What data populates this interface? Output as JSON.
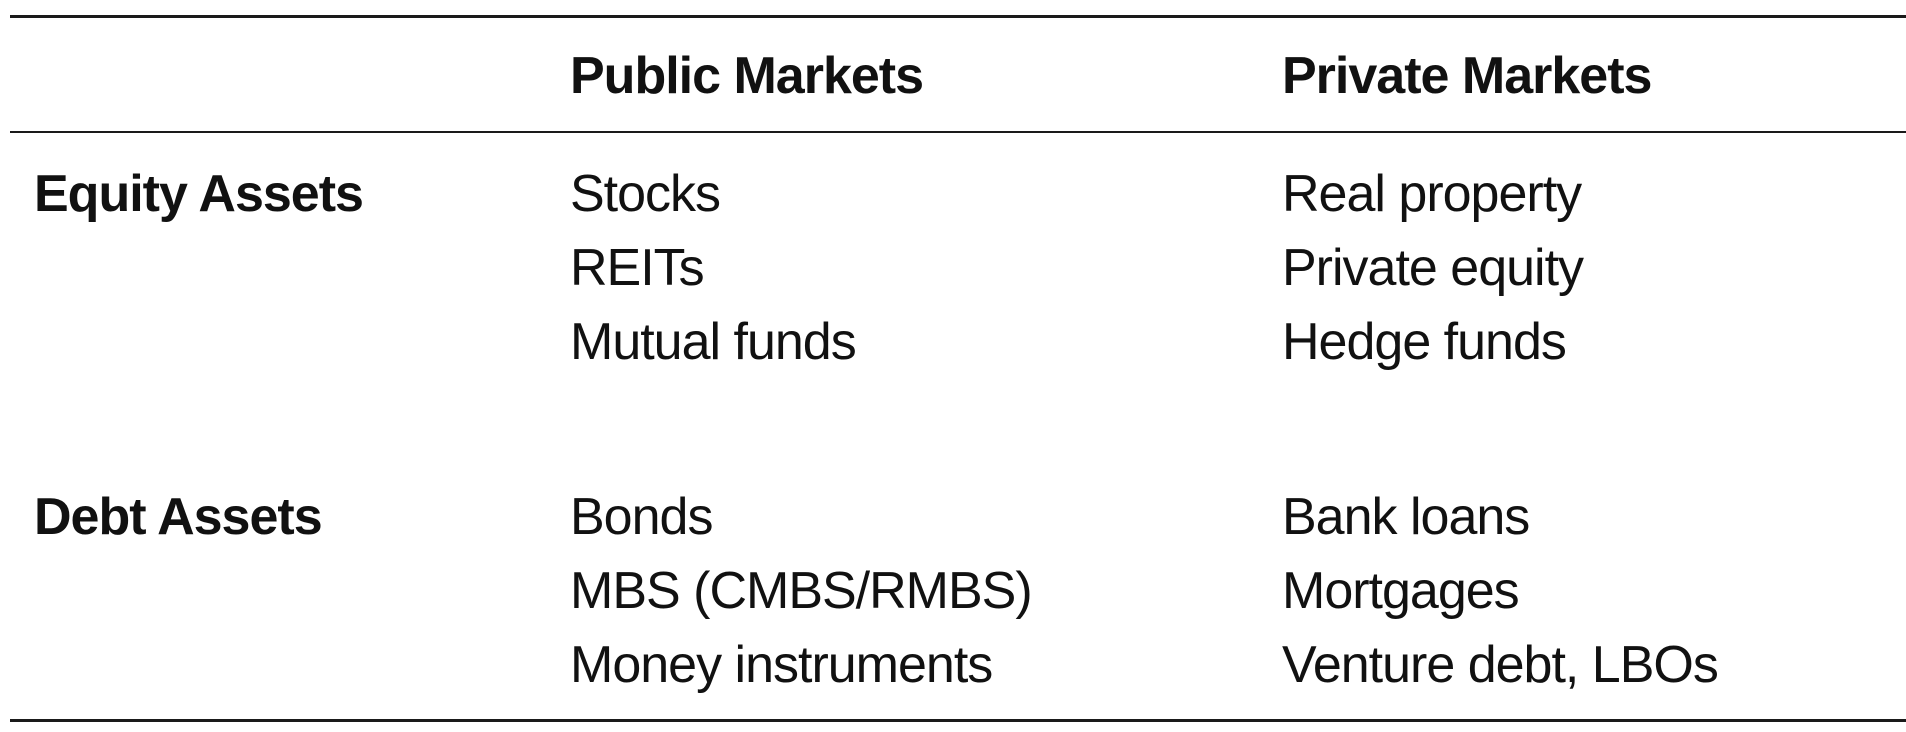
{
  "header": {
    "public_label": "Public Markets",
    "private_label": "Private Markets"
  },
  "rows": [
    {
      "label": "Equity Assets",
      "public": [
        "Stocks",
        "REITs",
        "Mutual funds"
      ],
      "private": [
        "Real property",
        "Private equity",
        "Hedge funds"
      ]
    },
    {
      "label": "Debt Assets",
      "public": [
        "Bonds",
        "MBS (CMBS/RMBS)",
        "Money instruments"
      ],
      "private": [
        "Bank loans",
        "Mortgages",
        "Venture debt, LBOs"
      ]
    }
  ]
}
